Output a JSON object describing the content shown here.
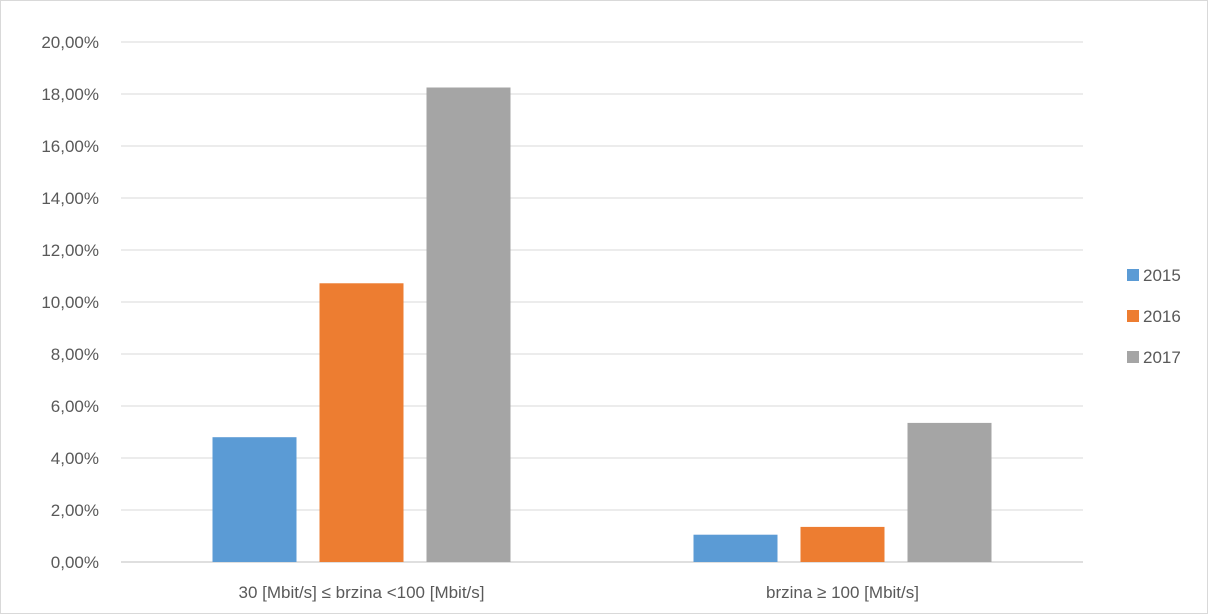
{
  "chart_data": {
    "type": "bar",
    "categories": [
      "30 [Mbit/s] ≤  brzina <100 [Mbit/s]",
      "brzina ≥ 100 [Mbit/s]"
    ],
    "series": [
      {
        "name": "2015",
        "color": "#5b9bd5",
        "values": [
          4.8,
          1.05
        ]
      },
      {
        "name": "2016",
        "color": "#ed7d31",
        "values": [
          10.72,
          1.35
        ]
      },
      {
        "name": "2017",
        "color": "#a5a5a5",
        "values": [
          18.25,
          5.35
        ]
      }
    ],
    "title": "",
    "xlabel": "",
    "ylabel": "",
    "ylim": [
      0,
      20
    ],
    "yticks": [
      "0,00%",
      "2,00%",
      "4,00%",
      "6,00%",
      "8,00%",
      "10,00%",
      "12,00%",
      "14,00%",
      "16,00%",
      "18,00%",
      "20,00%"
    ],
    "grid": true,
    "legend_position": "right"
  }
}
